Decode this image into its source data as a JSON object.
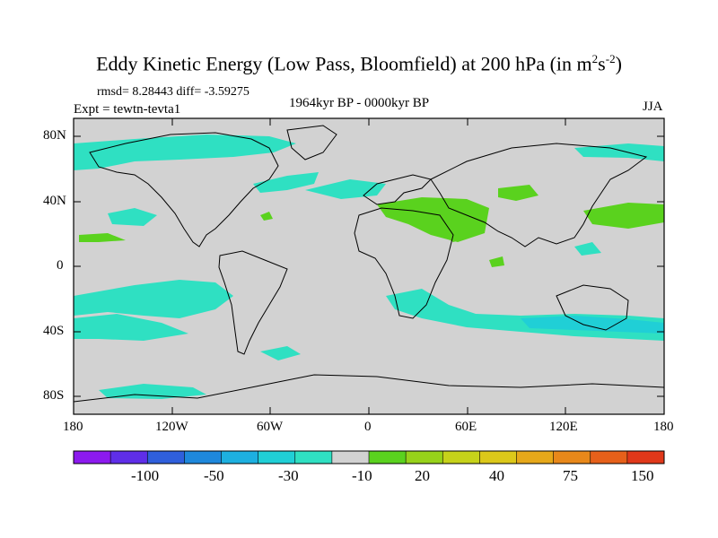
{
  "title": {
    "main": "Eddy Kinetic Energy (Low Pass, Bloomfield) at 200 hPa (in m",
    "sup1": "2",
    "mid": "s",
    "sup2": "-2",
    "end": ")"
  },
  "stats": "rmsd= 8.28443 diff= -3.59275",
  "expt": "Expt = tewtn-tevta1",
  "period": "1964kyr BP - 0000kyr BP",
  "season": "JJA",
  "lat_labels": [
    "80N",
    "40N",
    "0",
    "40S",
    "80S"
  ],
  "lon_labels": [
    "180",
    "120W",
    "60W",
    "0",
    "60E",
    "120E",
    "180"
  ],
  "colorbar": {
    "colors": [
      "#8c1aee",
      "#5f2ee8",
      "#2f5fdc",
      "#1e88dc",
      "#1db0e0",
      "#20cfd6",
      "#2fe0c2",
      "#d2d2d2",
      "#5ad21e",
      "#97d21a",
      "#c6d21a",
      "#dcc81a",
      "#e6a81a",
      "#e8881a",
      "#e6601a",
      "#e0381a"
    ],
    "labels": [
      "-100",
      "-50",
      "-30",
      "-10",
      "20",
      "40",
      "75",
      "150"
    ]
  },
  "colors": {
    "background_field": "#d2d2d2",
    "negative_light": "#2fe0c2",
    "negative_mid": "#20cfd6",
    "positive_light": "#5ad21e",
    "positive_mid": "#97d21a"
  }
}
